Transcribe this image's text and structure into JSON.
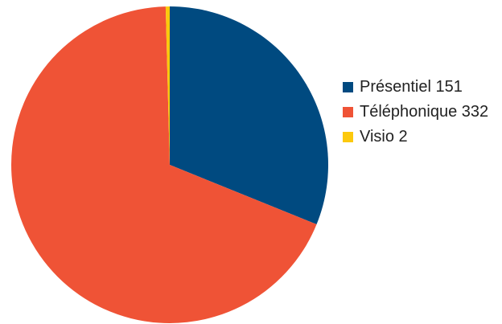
{
  "chart_data": {
    "type": "pie",
    "title": "",
    "legend_position": "right",
    "series": [
      {
        "label": "Présentiel",
        "value": 151,
        "legend_text": "Présentiel 151",
        "color": "#004a80"
      },
      {
        "label": "Téléphonique",
        "value": 332,
        "legend_text": "Téléphonique 332",
        "color": "#ef5336"
      },
      {
        "label": "Visio",
        "value": 2,
        "legend_text": "Visio 2",
        "color": "#fcc90d"
      }
    ]
  }
}
